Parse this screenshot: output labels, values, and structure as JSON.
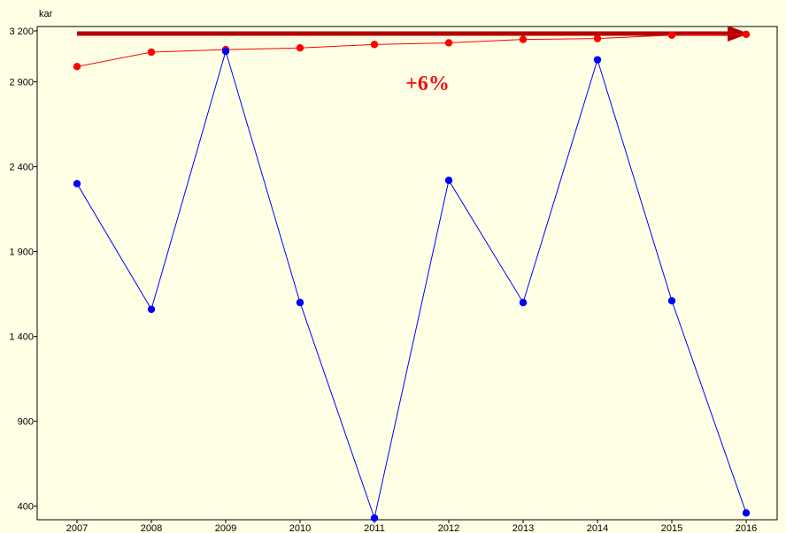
{
  "chart_data": {
    "type": "line",
    "ylabel": "kar",
    "categories": [
      "2007",
      "2008",
      "2009",
      "2010",
      "2011",
      "2012",
      "2013",
      "2014",
      "2015",
      "2016"
    ],
    "ylim": [
      320,
      3200
    ],
    "yticks": [
      400,
      900,
      1400,
      1900,
      2400,
      2900,
      3200
    ],
    "ytick_labels": [
      "400",
      "900",
      "1 400",
      "1 900",
      "2 400",
      "2 900",
      "3 200"
    ],
    "grid": false,
    "series": [
      {
        "color": "#ff0000",
        "values": [
          2990,
          3075,
          3090,
          3100,
          3120,
          3130,
          3150,
          3155,
          3175,
          3180
        ]
      },
      {
        "color": "#0000ff",
        "values": [
          2300,
          1560,
          3080,
          1600,
          330,
          2320,
          1600,
          3030,
          1610,
          360
        ]
      }
    ],
    "annotations": [
      {
        "text": "+6%",
        "color": "#ee1111"
      }
    ],
    "trend_arrow_color": "#b30000"
  }
}
